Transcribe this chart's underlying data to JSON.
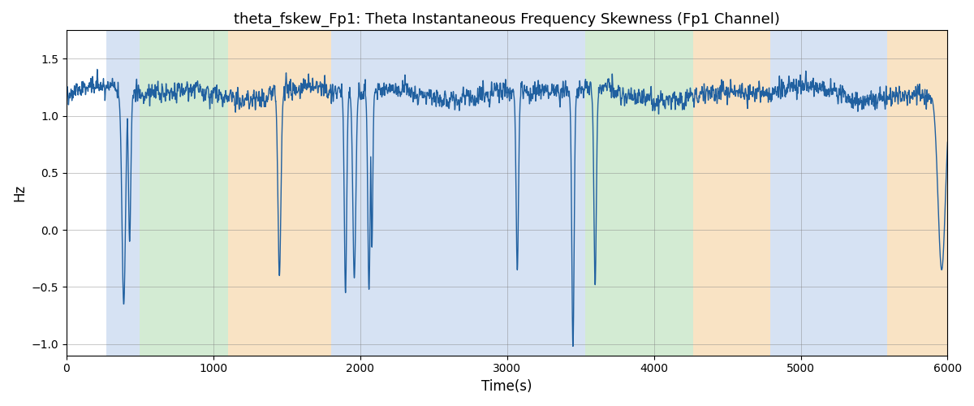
{
  "title": "theta_fskew_Fp1: Theta Instantaneous Frequency Skewness (Fp1 Channel)",
  "xlabel": "Time(s)",
  "ylabel": "Hz",
  "xlim": [
    0,
    6000
  ],
  "ylim": [
    -1.1,
    1.75
  ],
  "yticks": [
    -1.0,
    -0.5,
    0.0,
    0.5,
    1.0,
    1.5
  ],
  "xticks": [
    0,
    1000,
    2000,
    3000,
    4000,
    5000,
    6000
  ],
  "line_color": "#2060a0",
  "line_width": 1.0,
  "bg_regions": [
    {
      "start": 270,
      "end": 500,
      "color": "#aec6e8",
      "alpha": 0.5
    },
    {
      "start": 500,
      "end": 1100,
      "color": "#a8d8a8",
      "alpha": 0.5
    },
    {
      "start": 1100,
      "end": 1800,
      "color": "#f5c98a",
      "alpha": 0.5
    },
    {
      "start": 1800,
      "end": 1970,
      "color": "#aec6e8",
      "alpha": 0.5
    },
    {
      "start": 1970,
      "end": 3390,
      "color": "#aec6e8",
      "alpha": 0.5
    },
    {
      "start": 3390,
      "end": 3530,
      "color": "#aec6e8",
      "alpha": 0.5
    },
    {
      "start": 3530,
      "end": 3680,
      "color": "#a8d8a8",
      "alpha": 0.5
    },
    {
      "start": 3680,
      "end": 4270,
      "color": "#a8d8a8",
      "alpha": 0.5
    },
    {
      "start": 4270,
      "end": 4790,
      "color": "#f5c98a",
      "alpha": 0.5
    },
    {
      "start": 4790,
      "end": 5590,
      "color": "#aec6e8",
      "alpha": 0.5
    },
    {
      "start": 5590,
      "end": 6000,
      "color": "#f5c98a",
      "alpha": 0.5
    }
  ],
  "seed": 42,
  "n_points": 6001
}
